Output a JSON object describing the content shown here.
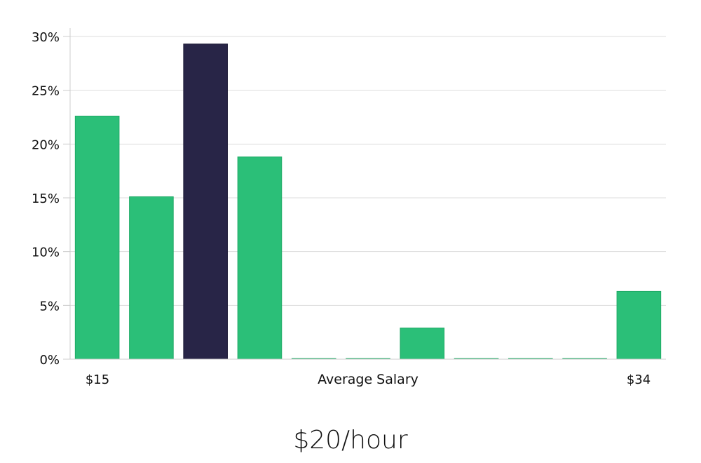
{
  "chart_data": {
    "type": "bar",
    "xlabel": "Average Salary",
    "ylabel": "",
    "x_tick_labels": {
      "first": "$15",
      "last": "$34"
    },
    "categories": [
      "$15",
      "",
      "",
      "",
      "",
      "",
      "",
      "",
      "",
      "",
      "$34"
    ],
    "values": [
      22.6,
      15.1,
      29.3,
      18.8,
      0,
      0,
      2.9,
      0,
      0,
      0,
      6.3
    ],
    "highlight_index": 2,
    "ylim": [
      0,
      30
    ],
    "yticks": [
      0,
      5,
      10,
      15,
      20,
      25,
      30
    ],
    "ytick_labels": [
      "0%",
      "5%",
      "10%",
      "15%",
      "20%",
      "25%",
      "30%"
    ],
    "grid": true,
    "colors": {
      "bar": "#2bbf78",
      "bar_edge": "#1faa66",
      "highlight": "#282547",
      "grid": "#dddddd",
      "axis": "#cccccc"
    }
  },
  "summary": {
    "value_label": "$20/hour"
  }
}
